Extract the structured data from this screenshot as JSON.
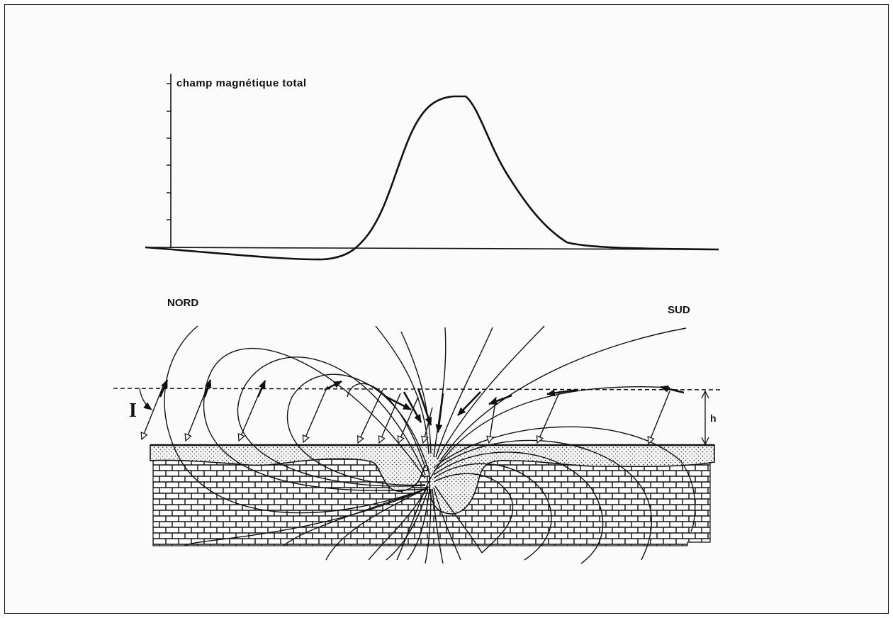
{
  "profile": {
    "axis_label": "champ magnétique total"
  },
  "section": {
    "north_label": "NORD",
    "south_label": "SUD",
    "inclination_label": "I",
    "height_label": "h"
  }
}
